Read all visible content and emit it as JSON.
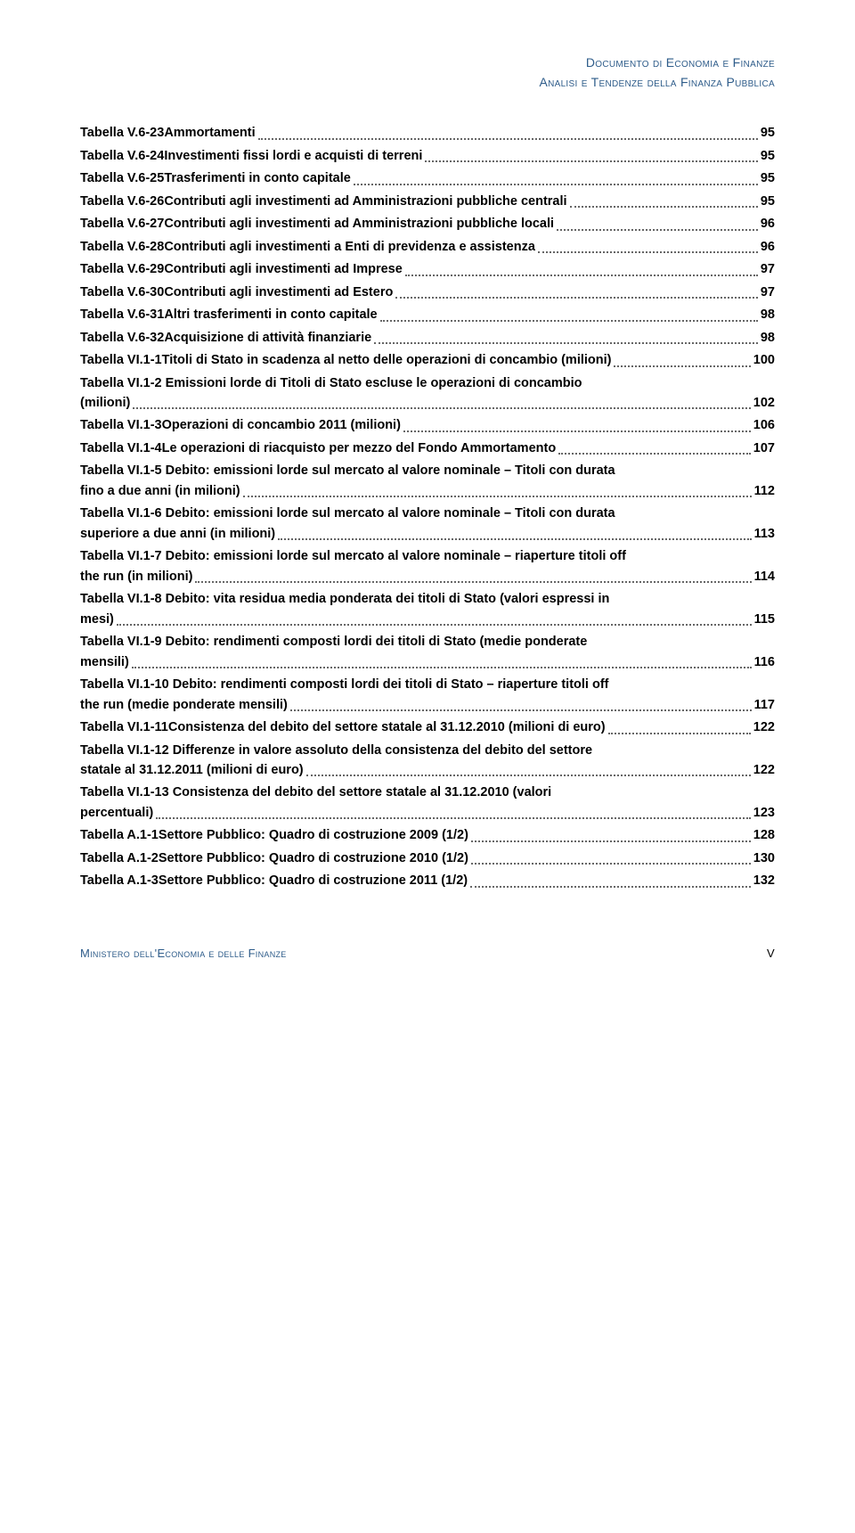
{
  "header": {
    "line1": "Documento di Economia e Finanze",
    "line2": "Analisi e Tendenze della Finanza Pubblica"
  },
  "entries": [
    {
      "label": "Tabella V.6-23",
      "title": "Ammortamenti",
      "page": "95"
    },
    {
      "label": "Tabella V.6-24",
      "title": "Investimenti fissi lordi e acquisti di terreni",
      "page": "95"
    },
    {
      "label": "Tabella V.6-25",
      "title": "Trasferimenti in conto capitale",
      "page": "95"
    },
    {
      "label": "Tabella V.6-26",
      "title": "Contributi agli investimenti ad Amministrazioni pubbliche centrali",
      "page": "95"
    },
    {
      "label": "Tabella V.6-27",
      "title": "Contributi agli investimenti ad Amministrazioni pubbliche locali",
      "page": "96"
    },
    {
      "label": "Tabella V.6-28",
      "title": "Contributi agli investimenti a Enti di previdenza e assistenza",
      "page": "96"
    },
    {
      "label": "Tabella V.6-29",
      "title": "Contributi agli investimenti ad Imprese",
      "page": "97"
    },
    {
      "label": "Tabella V.6-30",
      "title": "Contributi agli investimenti ad Estero",
      "page": "97"
    },
    {
      "label": "Tabella V.6-31",
      "title": "Altri trasferimenti in conto capitale",
      "page": "98"
    },
    {
      "label": "Tabella V.6-32",
      "title": "Acquisizione di attività finanziarie",
      "page": "98"
    },
    {
      "label": "Tabella VI.1-1",
      "title": "Titoli di Stato in scadenza al netto delle operazioni di concambio (milioni)",
      "page": "100"
    },
    {
      "label": "Tabella VI.1-2",
      "title_line1": "Emissioni lorde di Titoli di Stato escluse le operazioni di concambio",
      "title_line2": "(milioni)",
      "page": "102",
      "multiline": true
    },
    {
      "label": "Tabella VI.1-3",
      "title": "Operazioni di concambio 2011 (milioni)",
      "page": "106"
    },
    {
      "label": "Tabella VI.1-4",
      "title": "Le operazioni di riacquisto per mezzo del Fondo Ammortamento",
      "page": "107"
    },
    {
      "label": "Tabella VI.1-5",
      "title_line1": "Debito: emissioni lorde sul mercato al valore nominale – Titoli con durata",
      "title_line2": "fino a due anni (in milioni)",
      "page": "112",
      "multiline": true
    },
    {
      "label": "Tabella VI.1-6",
      "title_line1": "Debito: emissioni lorde sul mercato al valore nominale – Titoli con durata",
      "title_line2": "superiore a due anni (in milioni)",
      "page": "113",
      "multiline": true
    },
    {
      "label": "Tabella VI.1-7",
      "title_line1": "Debito: emissioni lorde sul mercato al valore nominale – riaperture titoli off",
      "title_line2": "the run (in milioni)",
      "page": "114",
      "multiline": true
    },
    {
      "label": "Tabella VI.1-8",
      "title_line1": "Debito: vita residua media ponderata dei titoli di Stato (valori espressi in",
      "title_line2": "mesi)",
      "page": "115",
      "multiline": true
    },
    {
      "label": "Tabella VI.1-9",
      "title_line1": "Debito: rendimenti composti lordi dei titoli di Stato (medie ponderate",
      "title_line2": "mensili)",
      "page": "116",
      "multiline": true
    },
    {
      "label": "Tabella VI.1-10",
      "title_line1": "Debito: rendimenti composti lordi dei titoli di Stato – riaperture titoli off",
      "title_line2": "the run (medie ponderate mensili)",
      "page": "117",
      "multiline": true
    },
    {
      "label": "Tabella VI.1-11",
      "title": "Consistenza del debito del settore statale al 31.12.2010 (milioni di euro)",
      "page": "122"
    },
    {
      "label": "Tabella VI.1-12",
      "title_line1": "Differenze in valore assoluto della consistenza del debito del settore",
      "title_line2": "statale al 31.12.2011 (milioni di euro)",
      "page": "122",
      "multiline": true
    },
    {
      "label": "Tabella VI.1-13",
      "title_line1": "Consistenza del debito del settore statale al 31.12.2010 (valori",
      "title_line2": "percentuali)",
      "page": "123",
      "multiline": true
    },
    {
      "label": "Tabella A.1-1",
      "title": "Settore Pubblico: Quadro di costruzione 2009 (1/2)",
      "page": "128"
    },
    {
      "label": "Tabella A.1-2",
      "title": "Settore Pubblico: Quadro di costruzione 2010 (1/2)",
      "page": "130"
    },
    {
      "label": "Tabella A.1-3",
      "title": "Settore Pubblico: Quadro di costruzione 2011 (1/2)",
      "page": "132"
    }
  ],
  "footer": {
    "left": "Ministero dell'Economia e delle Finanze",
    "right": "V"
  }
}
